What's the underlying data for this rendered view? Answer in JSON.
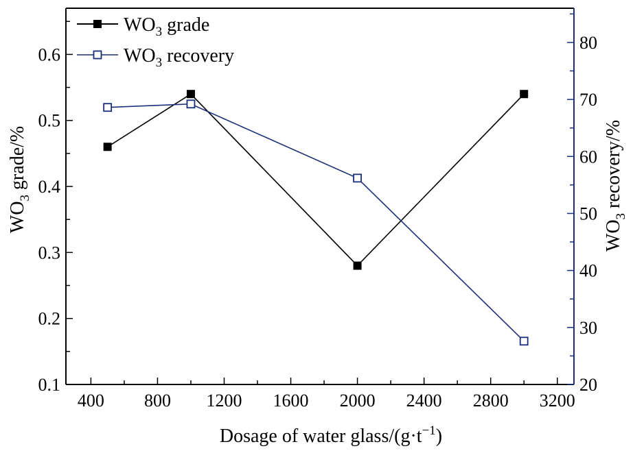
{
  "chart_data": {
    "type": "line",
    "x": [
      500,
      1000,
      2000,
      3000
    ],
    "xlim": [
      250,
      3300
    ],
    "xticks": [
      400,
      800,
      1200,
      1600,
      2000,
      2400,
      2800,
      3200
    ],
    "xtick_labels": [
      "400",
      "800",
      "1200",
      "1600",
      "2000",
      "2400",
      "2800",
      "3200"
    ],
    "xlabel": {
      "main": "Dosage of water glass/(g·t",
      "sup": "−1",
      "close": ")"
    },
    "y_left": {
      "lim": [
        0.1,
        0.67
      ],
      "ticks": [
        0.1,
        0.2,
        0.3,
        0.4,
        0.5,
        0.6
      ],
      "tick_labels": [
        "0.1",
        "0.2",
        "0.3",
        "0.4",
        "0.5",
        "0.6"
      ],
      "label": {
        "pre": "WO",
        "sub": "3",
        "post": " grade/%"
      }
    },
    "y_right": {
      "lim": [
        20,
        86
      ],
      "ticks": [
        20,
        30,
        40,
        50,
        60,
        70,
        80
      ],
      "tick_labels": [
        "20",
        "30",
        "40",
        "50",
        "60",
        "70",
        "80"
      ],
      "label": {
        "pre": "WO",
        "sub": "3",
        "post": " recovery/%"
      }
    },
    "series": [
      {
        "name": {
          "pre": "WO",
          "sub": "3",
          "post": " grade"
        },
        "axis": "left",
        "marker": "filled-square",
        "color": "#000000",
        "values": [
          0.46,
          0.54,
          0.28,
          0.54
        ]
      },
      {
        "name": {
          "pre": "WO",
          "sub": "3",
          "post": " recovery"
        },
        "axis": "right",
        "marker": "open-square",
        "color": "#1a2e7a",
        "values": [
          68.6,
          69.2,
          56.2,
          27.6
        ]
      }
    ],
    "legend_position": "top-left",
    "grid": false
  }
}
